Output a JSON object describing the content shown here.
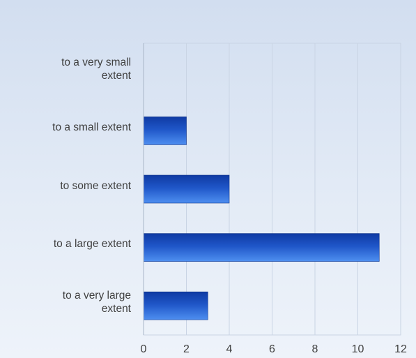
{
  "chart_data": {
    "type": "bar",
    "orientation": "horizontal",
    "categories": [
      "to a very small extent",
      "to a small extent",
      "to some extent",
      "to a large extent",
      "to a very large extent"
    ],
    "category_lines": [
      [
        "to a very small",
        "extent"
      ],
      [
        "to a small extent"
      ],
      [
        "to some extent"
      ],
      [
        "to a large extent"
      ],
      [
        "to a very large",
        "extent"
      ]
    ],
    "values": [
      0,
      2,
      4,
      11,
      3
    ],
    "title": "",
    "xlabel": "",
    "ylabel": "",
    "xlim": [
      0,
      12
    ],
    "xticks": [
      "0",
      "2",
      "4",
      "6",
      "8",
      "10",
      "12"
    ],
    "grid": true,
    "legend": "none",
    "colors": {
      "bar_dark": "#0f3aa3",
      "bar_light": "#4e8ff0",
      "grid": "#c9d4e4",
      "axis": "#a9b6c8"
    }
  }
}
